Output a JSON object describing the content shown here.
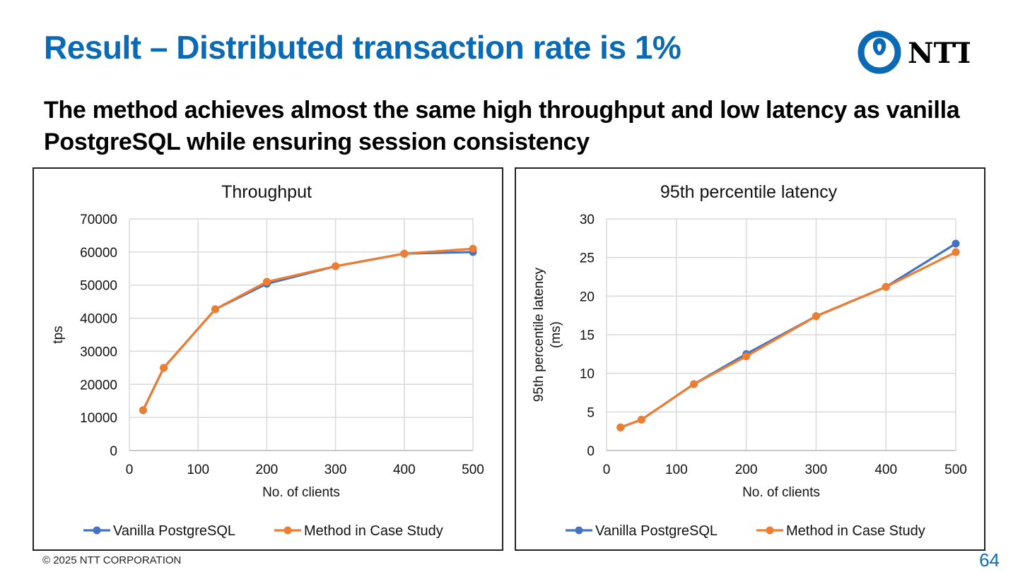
{
  "slide": {
    "title": "Result – Distributed transaction rate is 1%",
    "subtitle": "The method achieves almost the same high throughput and low latency as vanilla PostgreSQL while ensuring session consistency",
    "logo_text": "NTT",
    "footer": "© 2025 NTT CORPORATION",
    "page_number": "64",
    "colors": {
      "title": "#0a6ab6",
      "series_vanilla": "#4472c4",
      "series_method": "#ed7d31",
      "grid": "#d9d9d9"
    }
  },
  "chart_data": [
    {
      "type": "line",
      "title": "Throughput",
      "xlabel": "No. of clients",
      "ylabel": "tps",
      "x": [
        20,
        50,
        125,
        200,
        300,
        400,
        500
      ],
      "xlim": [
        0,
        500
      ],
      "ylim": [
        0,
        70000
      ],
      "xticks": [
        0,
        100,
        200,
        300,
        400,
        500
      ],
      "yticks": [
        0,
        10000,
        20000,
        30000,
        40000,
        50000,
        60000,
        70000
      ],
      "grid": true,
      "legend": "bottom",
      "series": [
        {
          "name": "Vanilla PostgreSQL",
          "color": "#4472c4",
          "values": [
            12200,
            25000,
            42700,
            50400,
            55700,
            59500,
            60000
          ]
        },
        {
          "name": "Method in Case Study",
          "color": "#ed7d31",
          "values": [
            12200,
            25000,
            42700,
            51000,
            55700,
            59500,
            61000
          ]
        }
      ]
    },
    {
      "type": "line",
      "title": "95th percentile latency",
      "xlabel": "No. of clients",
      "ylabel": "95th percentile latency (ms)",
      "ylabel_lines": [
        "95th percentile latency",
        "(ms)"
      ],
      "x": [
        20,
        50,
        125,
        200,
        300,
        400,
        500
      ],
      "xlim": [
        0,
        500
      ],
      "ylim": [
        0,
        30
      ],
      "xticks": [
        0,
        100,
        200,
        300,
        400,
        500
      ],
      "yticks": [
        0,
        5,
        10,
        15,
        20,
        25,
        30
      ],
      "grid": true,
      "legend": "bottom",
      "series": [
        {
          "name": "Vanilla PostgreSQL",
          "color": "#4472c4",
          "values": [
            3.0,
            4.0,
            8.6,
            12.5,
            17.4,
            21.2,
            26.8
          ]
        },
        {
          "name": "Method in Case Study",
          "color": "#ed7d31",
          "values": [
            3.0,
            4.0,
            8.6,
            12.2,
            17.4,
            21.2,
            25.7
          ]
        }
      ]
    }
  ]
}
